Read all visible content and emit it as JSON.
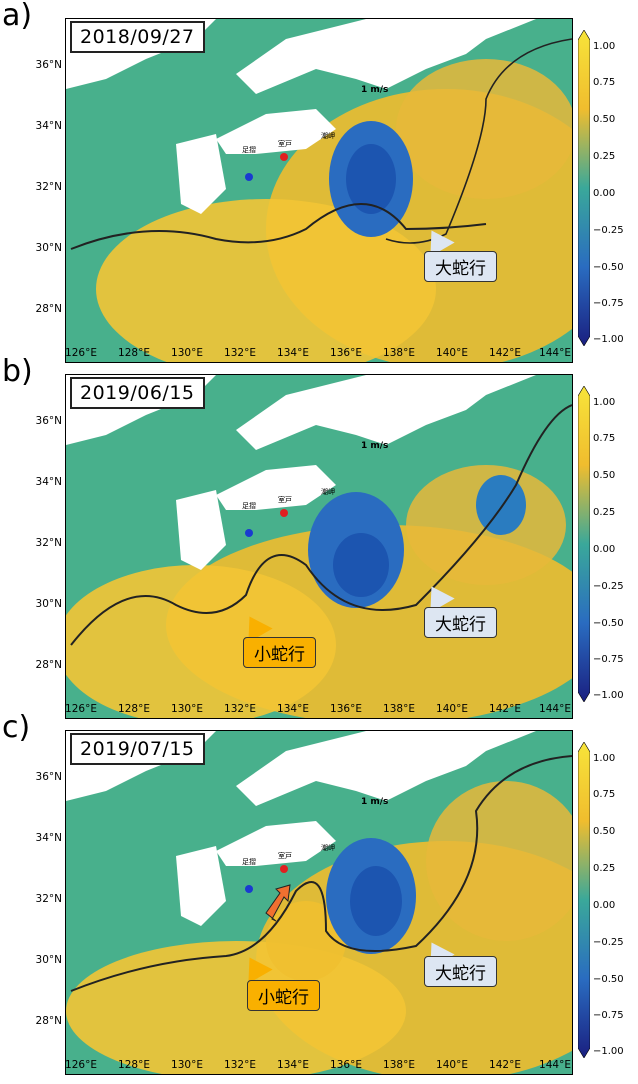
{
  "panels": [
    {
      "letter": "a)",
      "date": "2018/09/27",
      "large": "大蛇行",
      "small": ""
    },
    {
      "letter": "b)",
      "date": "2019/06/15",
      "large": "大蛇行",
      "small": "小蛇行"
    },
    {
      "letter": "c)",
      "date": "2019/07/15",
      "large": "大蛇行",
      "small": "小蛇行"
    }
  ],
  "lat_labels": [
    "36°N",
    "34°N",
    "32°N",
    "30°N",
    "28°N"
  ],
  "lon_labels": [
    "126°E",
    "128°E",
    "130°E",
    "132°E",
    "134°E",
    "136°E",
    "138°E",
    "140°E",
    "142°E",
    "144°E"
  ],
  "colorbar_ticks": [
    "1.00",
    "0.75",
    "0.50",
    "0.25",
    "0.00",
    "−0.25",
    "−0.50",
    "−0.75",
    "−1.00"
  ],
  "scale_arrow_label": "1 m/s",
  "place_names": {
    "ashizuri": "足摺",
    "muroto": "室戸",
    "shionomisaki": "潮岬"
  },
  "colors": {
    "high": "#f5c030",
    "mid": "#3aa89a",
    "low": "#2060b8",
    "land": "#ffffff",
    "marker_red": "#e02020",
    "marker_blue": "#1a3ad0"
  }
}
